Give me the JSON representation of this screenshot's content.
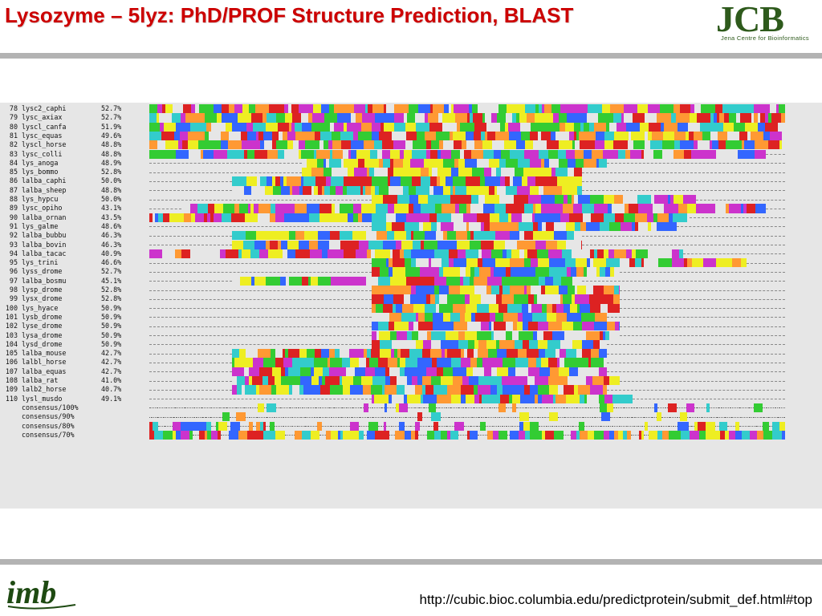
{
  "slide": {
    "title": "Lysozyme – 5lyz: PhD/PROF Structure Prediction, BLAST",
    "footer_url": "http://cubic.bioc.columbia.edu/predictprotein/submit_def.html#top",
    "logo_jcb": {
      "letters": "JCB",
      "subtitle": "Jena Centre for Bioinformatics"
    },
    "logo_imb": {
      "text": "imb"
    }
  },
  "colors": {
    "title": "#cc0000",
    "divider": "#b3b3b3",
    "panel": "#e6e6e6",
    "logo": "#2e5a1c",
    "res_green": "#33cc33",
    "res_blue": "#3366ff",
    "res_cyan": "#33cccc",
    "res_magenta": "#cc33cc",
    "res_red": "#dd2222",
    "res_yellow": "#eeee22",
    "res_orange": "#ff9933",
    "dash": "#e6e6e6"
  },
  "alignment": {
    "rows": [
      {
        "num": "78",
        "name": "lysc2_caphi",
        "pct": "52.7%"
      },
      {
        "num": "79",
        "name": "lysc_axiax",
        "pct": "52.7%"
      },
      {
        "num": "80",
        "name": "lyscl_canfa",
        "pct": "51.9%"
      },
      {
        "num": "81",
        "name": "lysc_equas",
        "pct": "49.6%"
      },
      {
        "num": "82",
        "name": "lyscl_horse",
        "pct": "48.8%"
      },
      {
        "num": "83",
        "name": "lysc_colli",
        "pct": "48.8%"
      },
      {
        "num": "84",
        "name": "lys_anoga",
        "pct": "48.9%"
      },
      {
        "num": "85",
        "name": "lys_bommo",
        "pct": "52.8%"
      },
      {
        "num": "86",
        "name": "lalba_caphi",
        "pct": "50.0%"
      },
      {
        "num": "87",
        "name": "lalba_sheep",
        "pct": "48.8%"
      },
      {
        "num": "88",
        "name": "lys_hypcu",
        "pct": "50.0%"
      },
      {
        "num": "89",
        "name": "lysc_opiho",
        "pct": "43.1%"
      },
      {
        "num": "90",
        "name": "lalba_ornan",
        "pct": "43.5%"
      },
      {
        "num": "91",
        "name": "lys_galme",
        "pct": "48.6%"
      },
      {
        "num": "92",
        "name": "lalba_bubbu",
        "pct": "46.3%"
      },
      {
        "num": "93",
        "name": "lalba_bovin",
        "pct": "46.3%"
      },
      {
        "num": "94",
        "name": "lalba_tacac",
        "pct": "40.9%"
      },
      {
        "num": "95",
        "name": "lys_trini",
        "pct": "46.6%"
      },
      {
        "num": "96",
        "name": "lyss_drome",
        "pct": "52.7%"
      },
      {
        "num": "97",
        "name": "lalba_bosmu",
        "pct": "45.1%"
      },
      {
        "num": "98",
        "name": "lysp_drome",
        "pct": "52.8%"
      },
      {
        "num": "99",
        "name": "lysx_drome",
        "pct": "52.8%"
      },
      {
        "num": "100",
        "name": "lys_hyace",
        "pct": "50.9%"
      },
      {
        "num": "101",
        "name": "lysb_drome",
        "pct": "50.9%"
      },
      {
        "num": "102",
        "name": "lyse_drome",
        "pct": "50.9%"
      },
      {
        "num": "103",
        "name": "lysa_drome",
        "pct": "50.9%"
      },
      {
        "num": "104",
        "name": "lysd_drome",
        "pct": "50.9%"
      },
      {
        "num": "105",
        "name": "lalba_mouse",
        "pct": "42.7%"
      },
      {
        "num": "106",
        "name": "lalbl_horse",
        "pct": "42.7%"
      },
      {
        "num": "107",
        "name": "lalba_equas",
        "pct": "42.7%"
      },
      {
        "num": "108",
        "name": "lalba_rat",
        "pct": "41.0%"
      },
      {
        "num": "109",
        "name": "lalb2_horse",
        "pct": "40.7%"
      },
      {
        "num": "110",
        "name": "lysl_musdo",
        "pct": "49.1%"
      },
      {
        "num": "",
        "name": "consensus/100%",
        "pct": ""
      },
      {
        "num": "",
        "name": "consensus/90%",
        "pct": ""
      },
      {
        "num": "",
        "name": "consensus/80%",
        "pct": ""
      },
      {
        "num": "",
        "name": "consensus/70%",
        "pct": ""
      }
    ]
  }
}
